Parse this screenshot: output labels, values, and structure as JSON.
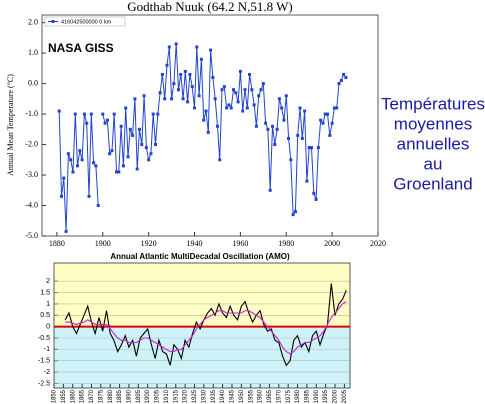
{
  "chart_data": [
    {
      "type": "line",
      "title": "Godthab Nuuk (64.2 N,51.8 W)",
      "y_label": "Annual Mean Temperature (°C)",
      "annotation": "NASA GISS",
      "x": [
        1881,
        1882,
        1883,
        1884,
        1885,
        1886,
        1887,
        1888,
        1889,
        1890,
        1891,
        1892,
        1893,
        1894,
        1895,
        1896,
        1897,
        1898,
        1899,
        1900,
        1901,
        1902,
        1903,
        1904,
        1905,
        1906,
        1907,
        1908,
        1909,
        1910,
        1911,
        1912,
        1913,
        1914,
        1915,
        1916,
        1917,
        1918,
        1919,
        1920,
        1921,
        1922,
        1923,
        1924,
        1925,
        1926,
        1927,
        1928,
        1929,
        1930,
        1931,
        1932,
        1933,
        1934,
        1935,
        1936,
        1937,
        1938,
        1939,
        1940,
        1941,
        1942,
        1943,
        1944,
        1945,
        1946,
        1947,
        1948,
        1949,
        1950,
        1951,
        1952,
        1953,
        1954,
        1955,
        1956,
        1957,
        1958,
        1959,
        1960,
        1961,
        1962,
        1963,
        1964,
        1965,
        1966,
        1967,
        1968,
        1969,
        1970,
        1971,
        1972,
        1973,
        1974,
        1975,
        1976,
        1977,
        1978,
        1979,
        1980,
        1981,
        1982,
        1983,
        1984,
        1985,
        1986,
        1987,
        1988,
        1989,
        1990,
        1991,
        1992,
        1993,
        1994,
        1995,
        1996,
        1997,
        1998,
        1999,
        2000,
        2001,
        2002,
        2003,
        2004,
        2005,
        2006
      ],
      "series": [
        {
          "name": "416042500000 0 km",
          "color": "#2244cc",
          "values": [
            -0.9,
            -3.7,
            -3.1,
            -4.85,
            -2.3,
            -2.5,
            -2.9,
            -1.0,
            -2.7,
            -2.2,
            -2.5,
            -1.0,
            -1.3,
            -3.7,
            -1.0,
            -2.6,
            -2.7,
            -4.0,
            null,
            -1.0,
            -1.3,
            -1.2,
            -2.3,
            -2.2,
            -1.0,
            -2.9,
            -2.9,
            -1.4,
            -2.7,
            -0.8,
            -2.4,
            -1.5,
            -1.7,
            -0.5,
            -2.8,
            -1.5,
            -2.0,
            -0.4,
            -2.1,
            -2.5,
            -2.3,
            -1.0,
            -2.0,
            -1.0,
            -0.3,
            0.3,
            -0.5,
            0.6,
            1.2,
            -0.5,
            0.0,
            1.3,
            -0.2,
            0.3,
            -0.5,
            0.4,
            -0.6,
            0.3,
            -0.1,
            -0.8,
            1.2,
            -0.4,
            0.8,
            -1.2,
            -0.9,
            -1.6,
            1.1,
            0.2,
            -0.5,
            -1.4,
            -2.5,
            -0.2,
            -0.1,
            -0.8,
            -0.7,
            -0.8,
            -0.2,
            -0.3,
            -0.6,
            0.4,
            -0.9,
            -0.2,
            -0.8,
            0.3,
            -0.2,
            -0.7,
            -1.4,
            -0.4,
            -0.2,
            0.0,
            -1.3,
            -1.5,
            -3.5,
            -1.4,
            -2.0,
            -1.5,
            -0.5,
            -0.8,
            -1.2,
            -0.4,
            -1.8,
            -2.5,
            -4.3,
            -4.2,
            -1.7,
            -0.8,
            -1.8,
            -0.9,
            -3.2,
            -2.1,
            -2.1,
            -3.6,
            -3.8,
            -2.1,
            -1.2,
            -1.3,
            -1.0,
            -1.0,
            -1.7,
            -1.3,
            -0.8,
            -0.8,
            0.0,
            0.1,
            0.3,
            0.2
          ]
        }
      ],
      "xlim": [
        1873.5,
        2020
      ],
      "xticks": [
        1880,
        1900,
        1920,
        1940,
        1960,
        1980,
        2000,
        2020
      ],
      "ylim": [
        -5,
        2.25
      ],
      "yticks": [
        {
          "value": 2,
          "label": "2.0"
        },
        {
          "value": 1,
          "label": "1.0"
        },
        {
          "value": 0,
          "label": "0.0"
        },
        {
          "value": -1,
          "label": "-1.0"
        },
        {
          "value": -2,
          "label": "-2.0"
        },
        {
          "value": -3,
          "label": "-3.0"
        },
        {
          "value": -4,
          "label": "-4.0"
        },
        {
          "value": -5,
          "label": "-5.0"
        }
      ],
      "markers": true,
      "grid": false
    },
    {
      "type": "line",
      "title": "Annual Atlantic MultiDecadal Oscillation (AMO)",
      "x": [
        1856,
        1858,
        1860,
        1862,
        1864,
        1866,
        1868,
        1870,
        1872,
        1874,
        1876,
        1878,
        1880,
        1882,
        1884,
        1886,
        1888,
        1890,
        1892,
        1894,
        1896,
        1898,
        1900,
        1902,
        1904,
        1906,
        1908,
        1910,
        1912,
        1914,
        1916,
        1918,
        1920,
        1922,
        1924,
        1926,
        1928,
        1930,
        1932,
        1934,
        1936,
        1938,
        1940,
        1942,
        1944,
        1946,
        1948,
        1950,
        1952,
        1954,
        1956,
        1958,
        1960,
        1962,
        1964,
        1966,
        1968,
        1970,
        1972,
        1974,
        1976,
        1978,
        1980,
        1982,
        1984,
        1986,
        1988,
        1990,
        1992,
        1994,
        1996,
        1998,
        2000,
        2002,
        2004,
        2006
      ],
      "series": [
        {
          "color": "#000000",
          "values": [
            0.3,
            0.6,
            0.0,
            -0.3,
            0.1,
            0.5,
            0.9,
            0.2,
            -0.3,
            0.4,
            -0.2,
            0.7,
            -0.3,
            -0.6,
            -1.1,
            -0.8,
            -0.4,
            -0.9,
            -0.6,
            -1.3,
            -0.5,
            -0.3,
            -0.1,
            -0.8,
            -1.4,
            -0.6,
            -1.1,
            -1.2,
            -1.7,
            -0.8,
            -1.0,
            -1.4,
            -0.6,
            -0.9,
            -0.3,
            0.2,
            -0.1,
            0.3,
            0.6,
            0.8,
            0.5,
            1.0,
            0.6,
            0.4,
            0.9,
            0.5,
            0.3,
            0.9,
            1.1,
            0.6,
            0.2,
            0.5,
            0.7,
            0.1,
            -0.2,
            -0.1,
            -0.6,
            -0.7,
            -1.3,
            -1.7,
            -1.5,
            -0.6,
            -0.4,
            -0.9,
            -0.7,
            -1.1,
            -0.4,
            -0.2,
            -0.8,
            -0.3,
            0.1,
            1.9,
            0.5,
            1.0,
            1.2,
            1.6
          ]
        },
        {
          "color": "#cc22cc",
          "values": [
            0.2,
            0.2,
            0.15,
            0.1,
            0.15,
            0.2,
            0.3,
            0.2,
            0.1,
            0.1,
            0.1,
            0.1,
            -0.1,
            -0.3,
            -0.5,
            -0.6,
            -0.6,
            -0.7,
            -0.7,
            -0.7,
            -0.6,
            -0.5,
            -0.5,
            -0.6,
            -0.7,
            -0.8,
            -0.9,
            -1.0,
            -1.1,
            -1.1,
            -1.0,
            -1.0,
            -0.8,
            -0.6,
            -0.4,
            -0.1,
            0.1,
            0.3,
            0.4,
            0.5,
            0.6,
            0.7,
            0.7,
            0.6,
            0.6,
            0.6,
            0.6,
            0.6,
            0.7,
            0.7,
            0.6,
            0.5,
            0.4,
            0.2,
            0.0,
            -0.2,
            -0.4,
            -0.6,
            -0.9,
            -1.1,
            -1.2,
            -1.1,
            -0.9,
            -0.8,
            -0.7,
            -0.7,
            -0.6,
            -0.5,
            -0.4,
            -0.2,
            0.1,
            0.4,
            0.6,
            0.8,
            1.0,
            1.1
          ]
        }
      ],
      "xlim": [
        1850,
        2008
      ],
      "xticks": [
        1850,
        1855,
        1860,
        1865,
        1870,
        1875,
        1880,
        1885,
        1890,
        1895,
        1900,
        1905,
        1910,
        1915,
        1920,
        1925,
        1930,
        1935,
        1940,
        1945,
        1950,
        1955,
        1960,
        1965,
        1970,
        1975,
        1980,
        1985,
        1990,
        1995,
        2000,
        2005
      ],
      "ylim": [
        -2.7,
        2.8
      ],
      "yticks": [
        2,
        1.5,
        1,
        0.5,
        0,
        -0.5,
        -1,
        -1.5,
        -2,
        -2.5
      ],
      "markers": false,
      "grid": true
    }
  ],
  "caption_lines": [
    "Températures",
    "moyennes",
    "annuelles",
    "au",
    "Groenland"
  ]
}
